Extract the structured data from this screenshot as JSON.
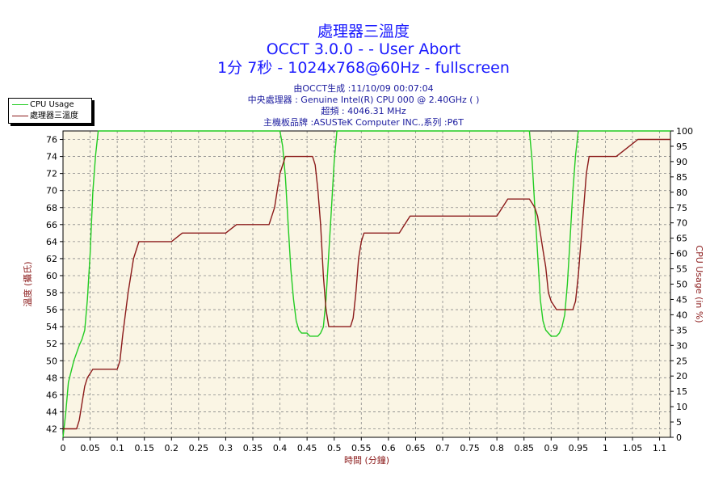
{
  "header": {
    "title": "處理器三溫度",
    "subtitle1": "OCCT 3.0.0 -  - User Abort",
    "subtitle2": "1分 7秒 - 1024x768@60Hz - fullscreen",
    "info": [
      "由OCCT生成 :11/10/09 00:07:04",
      "中央處理器 : Genuine Intel(R) CPU 000 @ 2.40GHz (  )",
      "超頻 : 4046.31 MHz",
      "主機板品牌 :ASUSTeK Computer INC.,系列 :P6T"
    ]
  },
  "colors": {
    "usage": "#22cc22",
    "temp": "#8b1a1a",
    "plot_bg": "#faf5e4",
    "title": "#1a1aff"
  },
  "chart_data": {
    "type": "line",
    "title": "處理器三溫度",
    "xlabel": "時間 (分鐘)",
    "ylabel_left": "溫度 (攝氏)",
    "ylabel_right": "CPU Usage (in %)",
    "xlim": [
      0,
      1.12
    ],
    "ylim_left": [
      41,
      77
    ],
    "ylim_right": [
      0,
      100
    ],
    "grid": true,
    "legend_position": "top-left",
    "x_ticks": [
      "0",
      "0.05",
      "0.1",
      "0.15",
      "0.2",
      "0.25",
      "0.3",
      "0.35",
      "0.4",
      "0.45",
      "0.5",
      "0.55",
      "0.6",
      "0.65",
      "0.7",
      "0.75",
      "0.8",
      "0.85",
      "0.9",
      "0.95",
      "1",
      "1.05",
      "1.1"
    ],
    "y_left_ticks": [
      42,
      44,
      46,
      48,
      50,
      52,
      54,
      56,
      58,
      60,
      62,
      64,
      66,
      68,
      70,
      72,
      74,
      76
    ],
    "y_right_ticks": [
      0,
      5,
      10,
      15,
      20,
      25,
      30,
      35,
      40,
      45,
      50,
      55,
      60,
      65,
      70,
      75,
      80,
      85,
      90,
      95,
      100
    ],
    "series": [
      {
        "name": "CPU Usage",
        "axis": "right",
        "x": [
          0,
          0.005,
          0.01,
          0.02,
          0.03,
          0.035,
          0.04,
          0.045,
          0.05,
          0.055,
          0.06,
          0.065,
          0.07,
          0.08,
          0.2,
          0.4,
          0.405,
          0.41,
          0.415,
          0.42,
          0.425,
          0.43,
          0.435,
          0.44,
          0.45,
          0.455,
          0.46,
          0.47,
          0.475,
          0.48,
          0.485,
          0.49,
          0.495,
          0.5,
          0.505,
          0.51,
          0.52,
          0.7,
          0.86,
          0.865,
          0.87,
          0.875,
          0.88,
          0.885,
          0.89,
          0.9,
          0.91,
          0.915,
          0.92,
          0.925,
          0.93,
          0.935,
          0.94,
          0.945,
          0.95,
          0.96,
          1.12
        ],
        "y": [
          0,
          8,
          18,
          25,
          30,
          32,
          35,
          45,
          60,
          80,
          92,
          100,
          100,
          100,
          100,
          100,
          95,
          85,
          70,
          55,
          45,
          38,
          35,
          34,
          34,
          33,
          33,
          33,
          34,
          36,
          45,
          60,
          75,
          90,
          100,
          100,
          100,
          100,
          100,
          90,
          75,
          60,
          45,
          38,
          35,
          33,
          33,
          34,
          36,
          40,
          50,
          65,
          80,
          92,
          100,
          100,
          100
        ]
      },
      {
        "name": "處理器三溫度",
        "axis": "left",
        "x": [
          0,
          0.025,
          0.03,
          0.035,
          0.04,
          0.045,
          0.05,
          0.055,
          0.06,
          0.1,
          0.105,
          0.11,
          0.12,
          0.13,
          0.14,
          0.15,
          0.2,
          0.21,
          0.22,
          0.23,
          0.3,
          0.31,
          0.32,
          0.38,
          0.385,
          0.39,
          0.395,
          0.4,
          0.41,
          0.45,
          0.46,
          0.465,
          0.47,
          0.475,
          0.48,
          0.485,
          0.49,
          0.5,
          0.53,
          0.535,
          0.54,
          0.545,
          0.55,
          0.555,
          0.56,
          0.57,
          0.62,
          0.63,
          0.64,
          0.65,
          0.79,
          0.8,
          0.81,
          0.82,
          0.86,
          0.865,
          0.87,
          0.875,
          0.88,
          0.885,
          0.89,
          0.895,
          0.9,
          0.91,
          0.94,
          0.945,
          0.95,
          0.955,
          0.96,
          0.965,
          0.97,
          0.98,
          1.02,
          1.03,
          1.04,
          1.05,
          1.06,
          1.12
        ],
        "y": [
          42,
          42,
          43,
          45,
          47,
          48,
          48.5,
          49,
          49,
          49,
          50,
          53,
          58,
          62,
          64,
          64,
          64,
          64.5,
          65,
          65,
          65,
          65.5,
          66,
          66,
          67,
          68,
          70,
          72,
          74,
          74,
          74,
          73,
          70,
          66,
          60,
          56,
          54,
          54,
          54,
          55,
          58,
          62,
          64,
          65,
          65,
          65,
          65,
          66,
          67,
          67,
          67,
          67,
          68,
          69,
          69,
          68.5,
          68,
          67,
          65,
          63,
          61,
          58,
          57,
          56,
          56,
          57,
          60,
          64,
          68,
          72,
          74,
          74,
          74,
          74.5,
          75,
          75.5,
          76,
          76
        ]
      }
    ]
  }
}
